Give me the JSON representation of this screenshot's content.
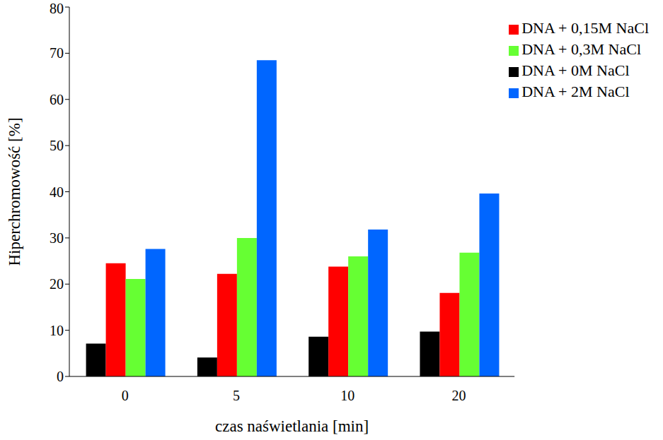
{
  "chart_data": {
    "type": "bar",
    "x_label": "czas naświetlania [min]",
    "y_label": "Hiperchromowość [%]",
    "categories": [
      "0",
      "5",
      "10",
      "20"
    ],
    "series": [
      {
        "name": "DNA + 0M NaCl",
        "color": "#000000",
        "values": [
          7.1,
          4.1,
          8.6,
          9.7
        ]
      },
      {
        "name": "DNA + 0,15M NaCl",
        "color": "#ff0000",
        "values": [
          24.5,
          22.2,
          23.8,
          18.1
        ]
      },
      {
        "name": "DNA + 0,3M NaCl",
        "color": "#66ff33",
        "values": [
          21.1,
          30.0,
          26.0,
          26.8
        ]
      },
      {
        "name": "DNA + 2M NaCl",
        "color": "#0066ff",
        "values": [
          27.6,
          68.5,
          31.8,
          39.6
        ]
      }
    ],
    "ylim": [
      0,
      80
    ],
    "yticks": [
      0,
      10,
      20,
      30,
      40,
      50,
      60,
      70,
      80
    ],
    "grid": false,
    "legend": "top-right"
  }
}
